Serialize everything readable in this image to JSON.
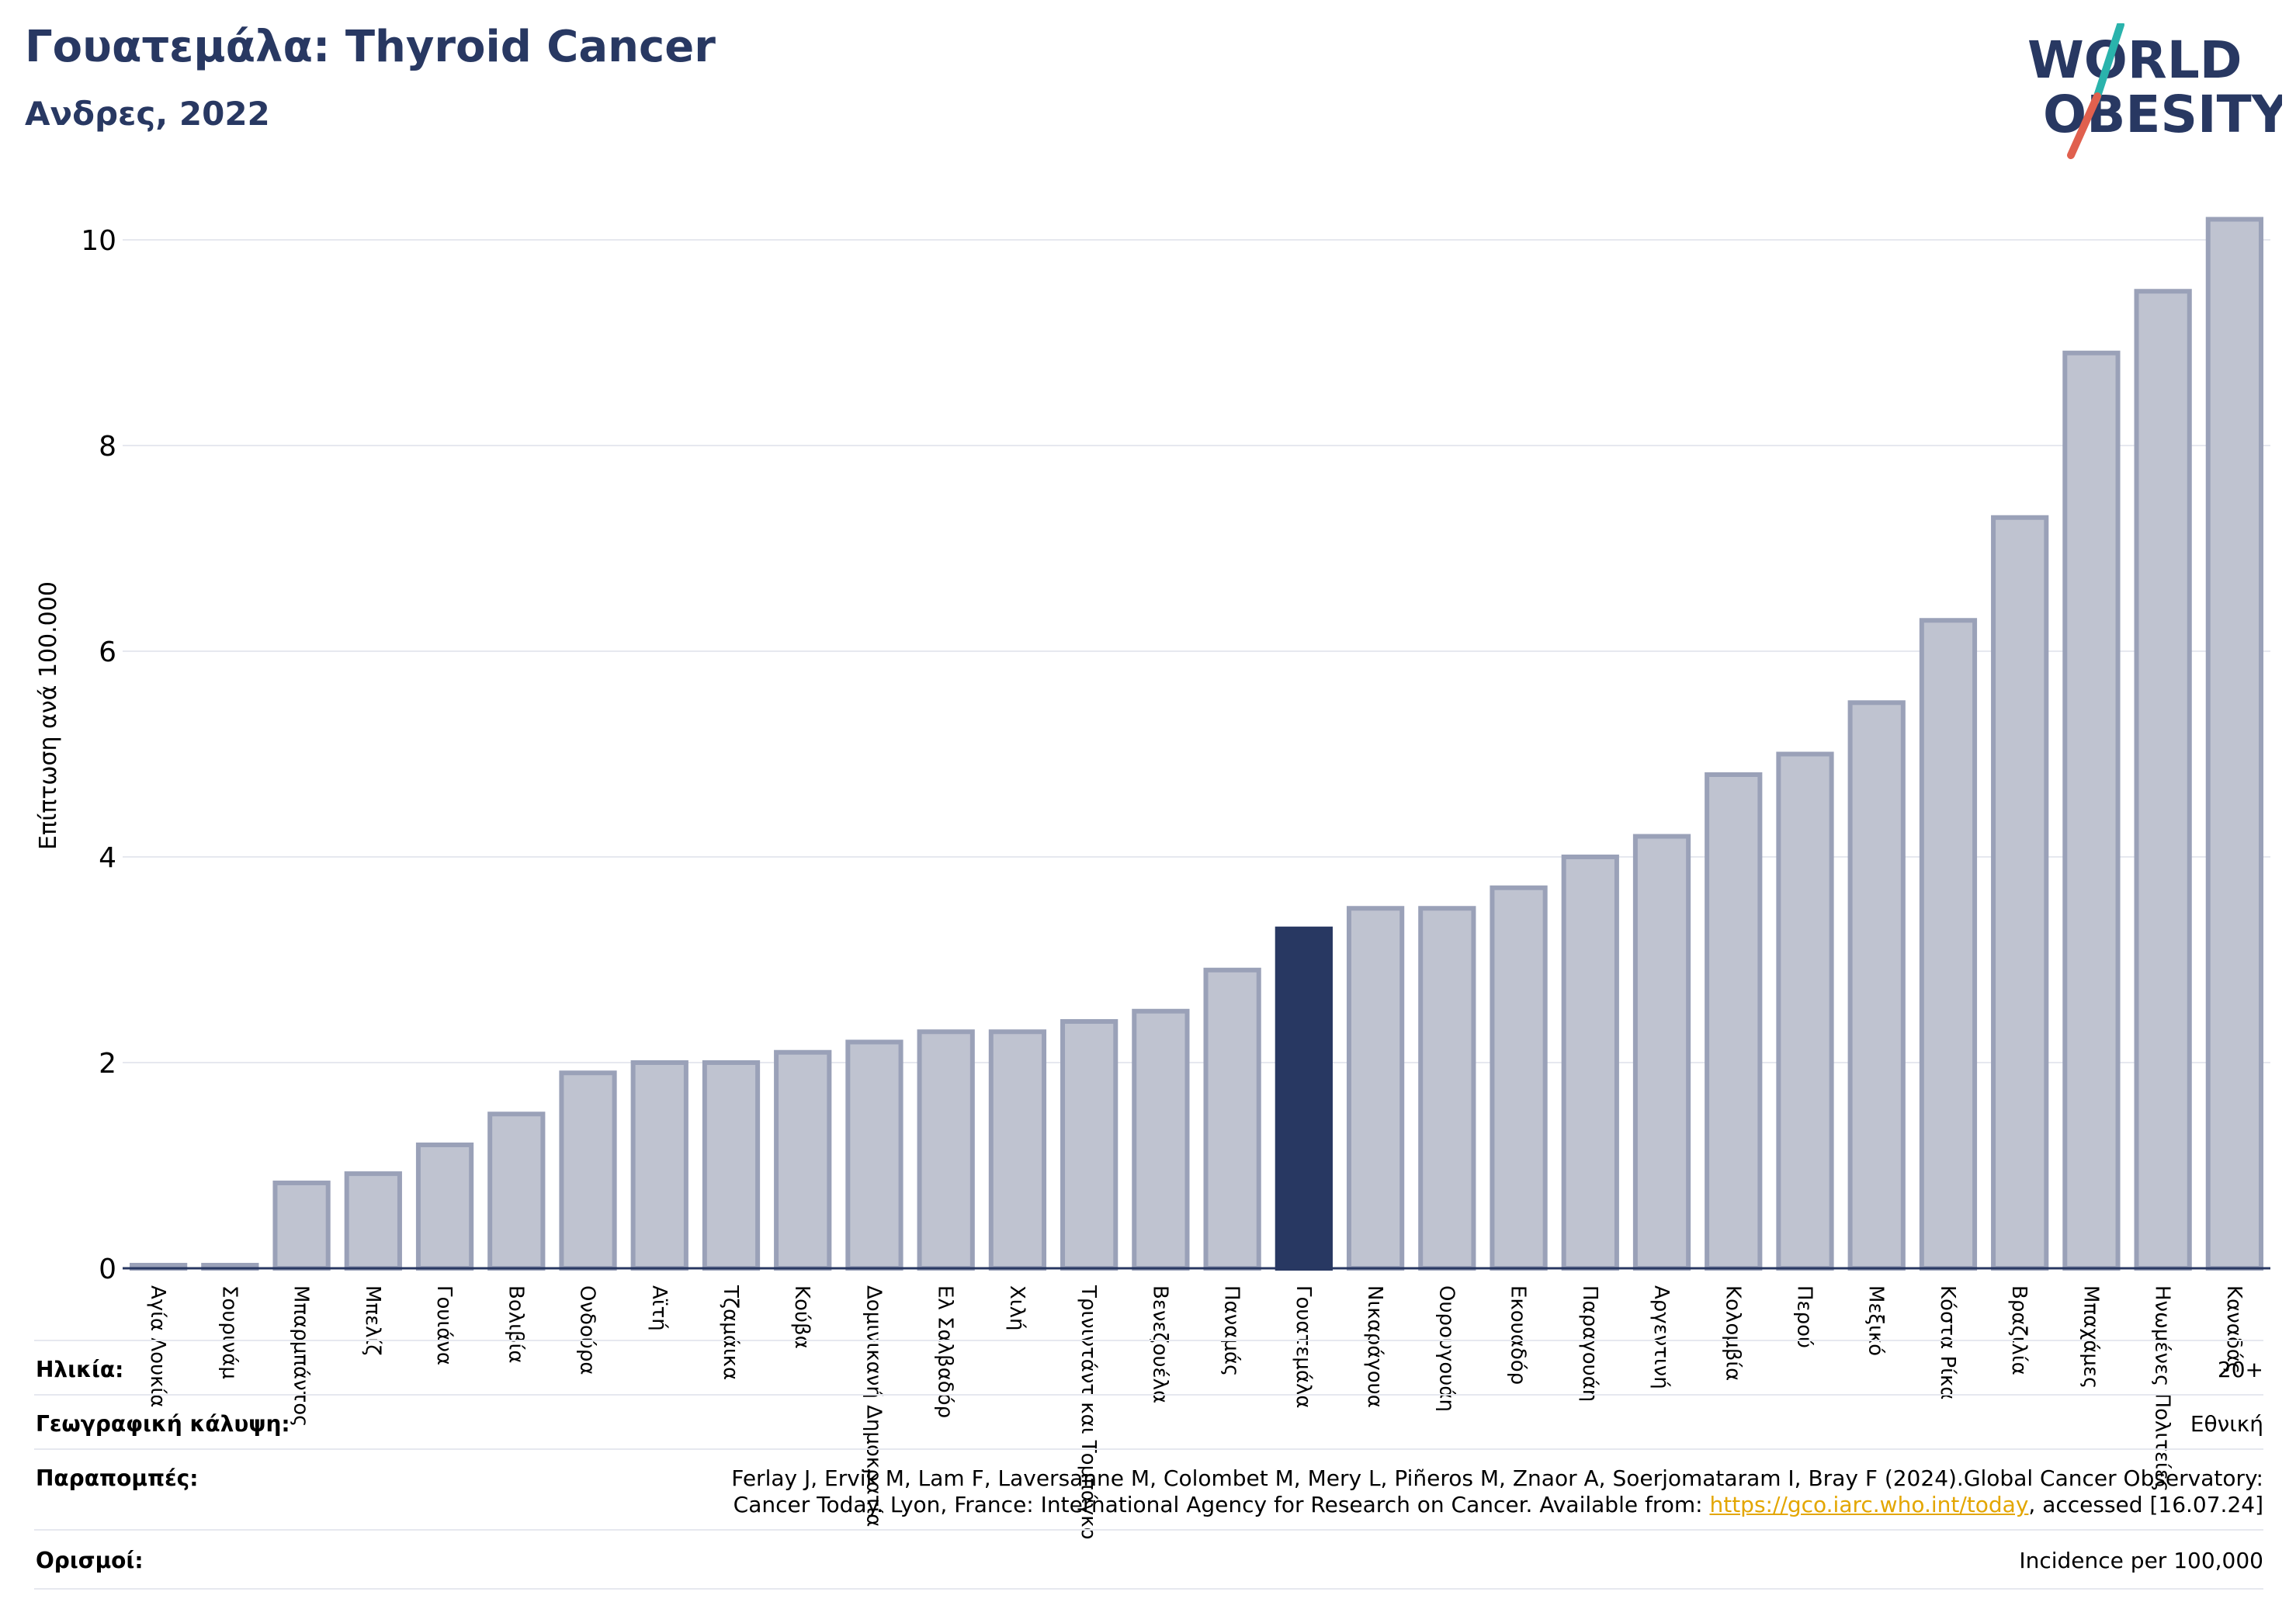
{
  "header": {
    "title": "Γουατεμάλα: Thyroid Cancer",
    "subtitle": "Ανδρες, 2022"
  },
  "logo": {
    "line1": "WORLD",
    "line2": "OBESITY",
    "colors": {
      "text": "#283862",
      "slash_top": "#2ab3ac",
      "slash_bottom": "#e0604e"
    }
  },
  "colors": {
    "bar": "#bfc3d0",
    "bar_edge": "#9aa1b8",
    "highlight": "#283862",
    "grid": "#e6e8ef",
    "axis": "#283862"
  },
  "chart_data": {
    "type": "bar",
    "ylabel": "Επίπτωση ανά 100.000",
    "xlabel": "",
    "ylim": [
      0,
      10.5
    ],
    "yticks": [
      0,
      2,
      4,
      6,
      8,
      10
    ],
    "grid": true,
    "highlight": "Γουατεμάλα",
    "categories": [
      "Αγία Λουκία",
      "Σουρινάμ",
      "Μπαρμπάντος",
      "Μπελίζ",
      "Γουιάνα",
      "Βολιβία",
      "Ονδούρα",
      "Αϊτή",
      "Τζαμάικα",
      "Κούβα",
      "Δομινικανή Δημοκρατία",
      "Ελ Σαλβαδόρ",
      "Χιλή",
      "Τρινιντάντ και Τομπάγκο",
      "Βενεζουέλα",
      "Παναμάς",
      "Γουατεμάλα",
      "Νικαράγουα",
      "Ουρουγουάη",
      "Εκουαδόρ",
      "Παραγουάη",
      "Αργεντινή",
      "Κολομβία",
      "Περού",
      "Μεξικό",
      "Κόστα Ρίκα",
      "Βραζιλία",
      "Μπαχάμες",
      "Ηνωμένες Πολιτείες",
      "Καναδάς"
    ],
    "values": [
      0.03,
      0.03,
      0.83,
      0.92,
      1.2,
      1.5,
      1.9,
      2.0,
      2.0,
      2.1,
      2.2,
      2.3,
      2.3,
      2.4,
      2.5,
      2.9,
      3.3,
      3.5,
      3.5,
      3.7,
      4.0,
      4.2,
      4.8,
      5.0,
      5.5,
      6.3,
      7.3,
      8.9,
      9.5,
      10.2
    ]
  },
  "info": {
    "age_label": "Ηλικία:",
    "age_value": "20+",
    "coverage_label": "Γεωγραφική κάλυψη:",
    "coverage_value": "Εθνική",
    "refs_label": "Παραπομπές:",
    "refs_line1": "Ferlay J, Ervik M, Lam F, Laversanne M, Colombet M, Mery L, Piñeros M, Znaor A, Soerjomataram I, Bray F (2024).Global Cancer Observatory:",
    "refs_line2_pre": "Cancer Today. Lyon, France: International Agency for Research on Cancer. Available from: ",
    "refs_link": "https://gco.iarc.who.int/today",
    "refs_line2_post": ", accessed [16.07.24]",
    "defs_label": "Ορισμοί:",
    "defs_value": "Incidence per 100,000"
  }
}
